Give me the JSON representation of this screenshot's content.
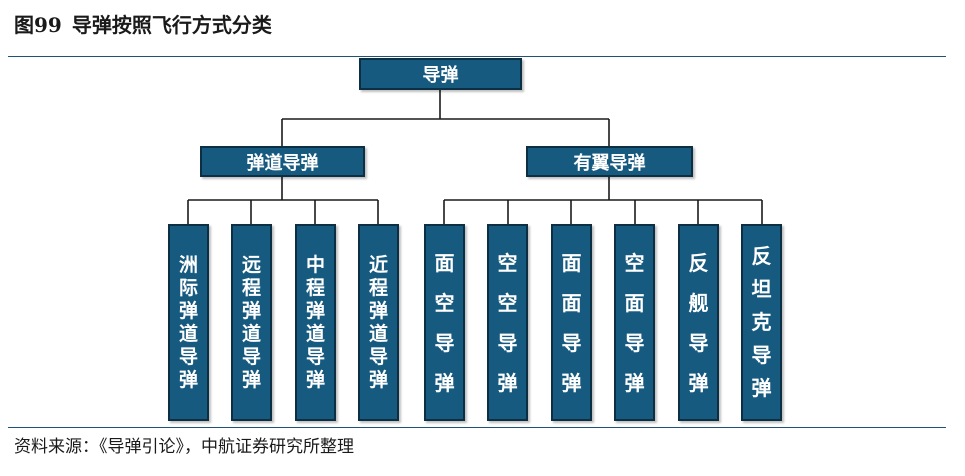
{
  "figure": {
    "number": "图99",
    "title": "导弹按照飞行方式分类"
  },
  "tree": {
    "root": "导弹",
    "left": {
      "label": "弹道导弹",
      "children": [
        "洲际弹道导弹",
        "远程弹道导弹",
        "中程弹道导弹",
        "近程弹道导弹"
      ]
    },
    "right": {
      "label": "有翼导弹",
      "children": [
        "面空导弹",
        "空空导弹",
        "面面导弹",
        "空面导弹",
        "反舰导弹",
        "反坦克导弹"
      ]
    }
  },
  "source": "资料来源：《导弹引论》，中航证券研究所整理",
  "colors": {
    "box_fill": "#175a80",
    "box_border": "#0d2f44",
    "box_text": "#ffffff",
    "connector": "#1a1a1a",
    "rule": "#1f5276"
  }
}
